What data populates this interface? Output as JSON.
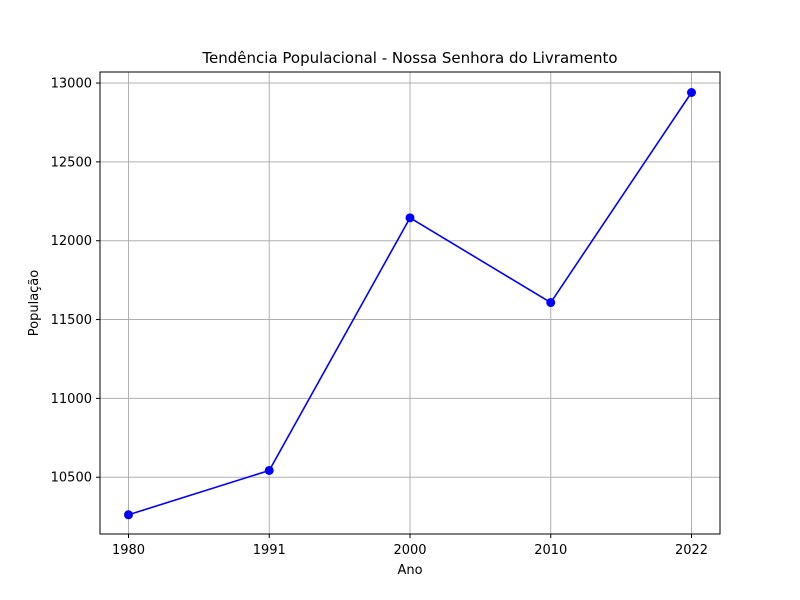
{
  "chart_data": {
    "type": "line",
    "title": "Tendência Populacional - Nossa Senhora do Livramento",
    "xlabel": "Ano",
    "ylabel": "População",
    "categories": [
      "1980",
      "1991",
      "2000",
      "2010",
      "2022"
    ],
    "series": [
      {
        "values": [
          10262,
          10543,
          12145,
          11608,
          12940
        ],
        "color": "#0000ff"
      }
    ],
    "ylim": [
      10140,
      13070
    ],
    "yticks": [
      10500,
      11000,
      11500,
      12000,
      12500,
      13000
    ],
    "grid": true,
    "marker": "circle"
  }
}
